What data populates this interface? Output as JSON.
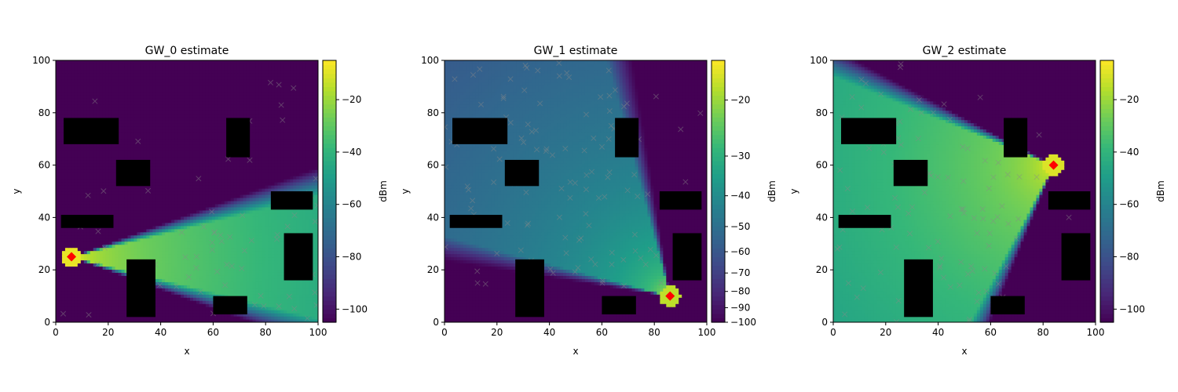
{
  "chart_data": [
    {
      "type": "heatmap",
      "title": "GW_0 estimate",
      "xlabel": "x",
      "ylabel": "y",
      "xlim": [
        0,
        100
      ],
      "ylim": [
        0,
        100
      ],
      "x_ticks": [
        0,
        20,
        40,
        60,
        80,
        100
      ],
      "y_ticks": [
        0,
        20,
        40,
        60,
        80,
        100
      ],
      "colorbar": {
        "label": "dBm",
        "vmin": -105,
        "vmax": -5,
        "scale": "linear",
        "ticks": [
          -100,
          -80,
          -60,
          -40,
          -20
        ]
      },
      "gateway": {
        "x": 6,
        "y": 25
      },
      "beam": {
        "half_angle_deg": 14,
        "direction_deg": 0
      },
      "peak_dbm": -8,
      "floor_dbm": -105
    },
    {
      "type": "heatmap",
      "title": "GW_1 estimate",
      "xlabel": "x",
      "ylabel": "y",
      "xlim": [
        0,
        100
      ],
      "ylim": [
        0,
        100
      ],
      "x_ticks": [
        0,
        20,
        40,
        60,
        80,
        100
      ],
      "y_ticks": [
        0,
        20,
        40,
        60,
        80,
        100
      ],
      "colorbar": {
        "label": "dBm",
        "vmin": -100,
        "vmax": -15,
        "scale": "symlog",
        "ticks": [
          -100,
          -90,
          -80,
          -70,
          -60,
          -50,
          -40,
          -30,
          -20
        ]
      },
      "gateway": {
        "x": 86,
        "y": 10
      },
      "beam": {
        "half_angle_deg": 30,
        "direction_deg": 135
      },
      "peak_dbm": -18,
      "floor_dbm": -100
    },
    {
      "type": "heatmap",
      "title": "GW_2 estimate",
      "xlabel": "x",
      "ylabel": "y",
      "xlim": [
        0,
        100
      ],
      "ylim": [
        0,
        100
      ],
      "x_ticks": [
        0,
        20,
        40,
        60,
        80,
        100
      ],
      "y_ticks": [
        0,
        20,
        40,
        60,
        80,
        100
      ],
      "colorbar": {
        "label": "dBm",
        "vmin": -105,
        "vmax": -5,
        "scale": "linear",
        "ticks": [
          -100,
          -80,
          -60,
          -40,
          -20
        ]
      },
      "gateway": {
        "x": 84,
        "y": 60
      },
      "beam": {
        "half_angle_deg": 42,
        "direction_deg": 200
      },
      "peak_dbm": -10,
      "floor_dbm": -105
    }
  ],
  "obstacles": [
    {
      "x0": 3,
      "x1": 24,
      "y0": 68,
      "y1": 78
    },
    {
      "x0": 23,
      "x1": 36,
      "y0": 52,
      "y1": 62
    },
    {
      "x0": 65,
      "x1": 74,
      "y0": 63,
      "y1": 78
    },
    {
      "x0": 2,
      "x1": 22,
      "y0": 36,
      "y1": 41
    },
    {
      "x0": 82,
      "x1": 98,
      "y0": 43,
      "y1": 50
    },
    {
      "x0": 27,
      "x1": 38,
      "y0": 2,
      "y1": 24
    },
    {
      "x0": 87,
      "x1": 98,
      "y0": 16,
      "y1": 34
    },
    {
      "x0": 60,
      "x1": 73,
      "y0": 3,
      "y1": 10
    }
  ],
  "colors": {
    "gateway_marker": "#ff0000",
    "obstacle": "#000000",
    "sample_marker": "#8a8a8a"
  },
  "colormap": "viridis"
}
